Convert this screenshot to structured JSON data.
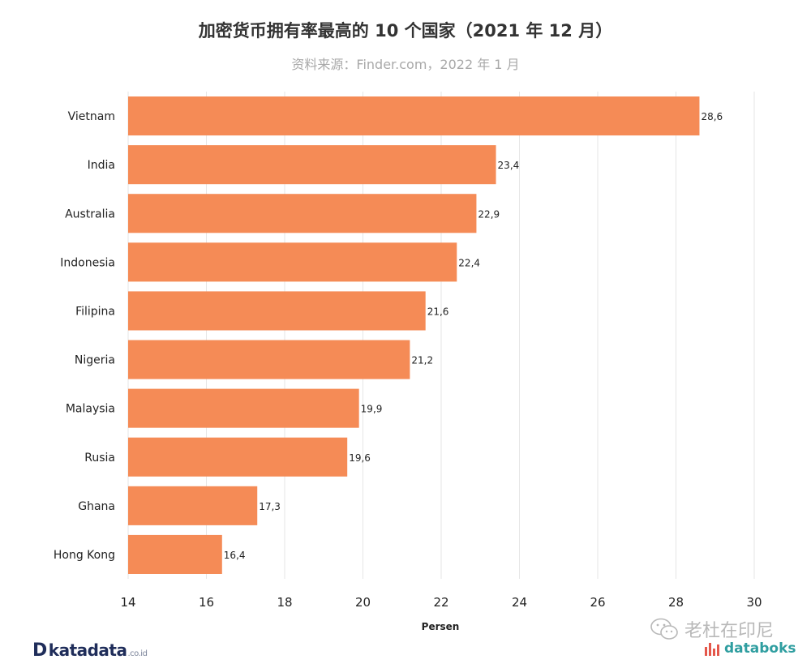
{
  "chart_data": {
    "type": "bar",
    "orientation": "horizontal",
    "title": "加密货币拥有率最高的 10 个国家（2021 年 12 月）",
    "subtitle": "资料来源：Finder.com，2022 年 1 月",
    "xlabel": "Persen",
    "ylabel": "",
    "xlim": [
      14,
      30
    ],
    "xticks": [
      "14",
      "16",
      "18",
      "20",
      "22",
      "24",
      "26",
      "28",
      "30"
    ],
    "categories": [
      "Vietnam",
      "India",
      "Australia",
      "Indonesia",
      "Filipina",
      "Nigeria",
      "Malaysia",
      "Rusia",
      "Ghana",
      "Hong Kong"
    ],
    "values": [
      28.6,
      23.4,
      22.9,
      22.4,
      21.6,
      21.2,
      19.9,
      19.6,
      17.3,
      16.4
    ],
    "value_labels": [
      "28,6",
      "23,4",
      "22,9",
      "22,4",
      "21,6",
      "21,2",
      "19,9",
      "19,6",
      "17,3",
      "16,4"
    ],
    "bar_color": "#f58b56",
    "grid": "vertical"
  },
  "branding": {
    "left_logo_mark": "D",
    "left_logo_text": "katadata",
    "left_logo_suffix": ".co.id",
    "watermark_text": "老杜在印尼",
    "right_logo_text": "databoks",
    "right_logo_color": "#2f9ea0",
    "left_logo_color": "#1f2d5a",
    "icons": [
      "wechat-icon",
      "databoks-icon"
    ]
  }
}
